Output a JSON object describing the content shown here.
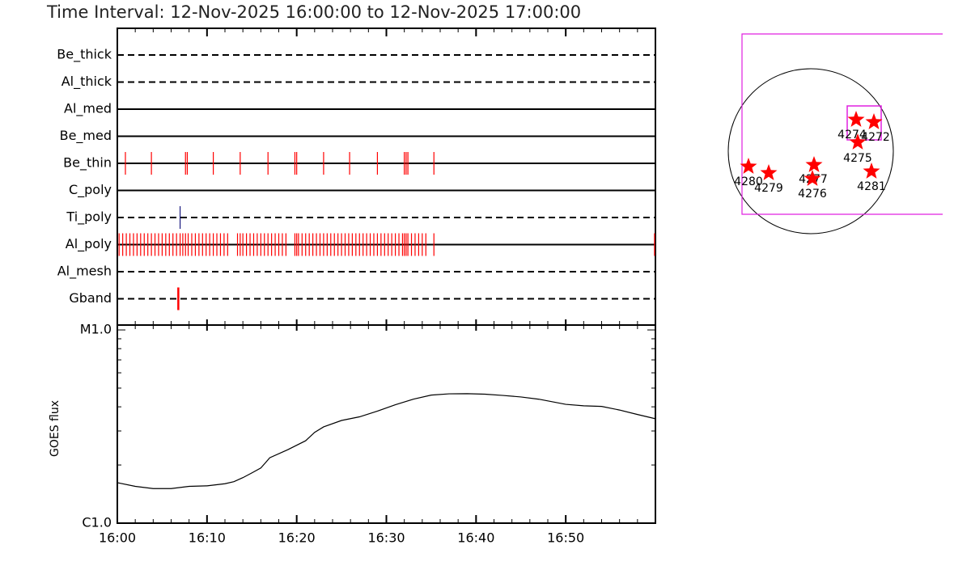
{
  "title": "Time Interval: 12-Nov-2025 16:00:00 to 12-Nov-2025 17:00:00",
  "chart_data": [
    {
      "type": "event",
      "xlim": [
        0,
        60
      ],
      "event_color": "#ff0000",
      "series": [
        {
          "name": "Be_thick",
          "style": "dashed",
          "values": []
        },
        {
          "name": "Al_thick",
          "style": "dashed",
          "values": []
        },
        {
          "name": "Al_med",
          "style": "solid",
          "values": []
        },
        {
          "name": "Be_med",
          "style": "solid",
          "values": []
        },
        {
          "name": "Be_thin",
          "style": "solid",
          "values": [
            0.9,
            3.8,
            7.6,
            7.8,
            10.7,
            13.7,
            16.8,
            19.8,
            20.0,
            23.0,
            25.9,
            29.0,
            32.0,
            32.2,
            32.4,
            35.3
          ]
        },
        {
          "name": "C_poly",
          "style": "solid",
          "values": []
        },
        {
          "name": "Ti_poly",
          "style": "dashed",
          "color": "#1a1a80",
          "values": [
            7.0
          ]
        },
        {
          "name": "Al_poly",
          "style": "solid",
          "values": [
            0.2,
            0.6,
            1.0,
            1.4,
            1.8,
            2.2,
            2.6,
            3.0,
            3.4,
            3.8,
            4.2,
            4.6,
            5.0,
            5.4,
            5.8,
            6.2,
            6.6,
            7.0,
            7.3,
            7.6,
            7.9,
            8.3,
            8.7,
            9.1,
            9.5,
            9.9,
            10.3,
            10.7,
            11.1,
            11.5,
            11.9,
            12.3,
            13.4,
            13.7,
            14.0,
            14.4,
            14.8,
            15.2,
            15.6,
            16.0,
            16.4,
            16.8,
            17.2,
            17.6,
            18.0,
            18.4,
            18.8,
            19.8,
            20.0,
            20.2,
            20.6,
            21.0,
            21.4,
            21.8,
            22.2,
            22.6,
            23.0,
            23.4,
            23.8,
            24.2,
            24.6,
            25.0,
            25.4,
            25.8,
            26.2,
            26.6,
            27.0,
            27.4,
            27.8,
            28.2,
            28.6,
            29.0,
            29.4,
            29.8,
            30.2,
            30.6,
            31.0,
            31.4,
            31.8,
            32.0,
            32.2,
            32.4,
            32.8,
            33.2,
            33.6,
            34.0,
            34.4,
            35.3,
            59.9
          ]
        },
        {
          "name": "Al_mesh",
          "style": "dashed",
          "values": []
        },
        {
          "name": "Gband",
          "style": "dashed",
          "width": 2.5,
          "values": [
            6.8
          ]
        }
      ]
    },
    {
      "type": "line",
      "ylabel": "GOES flux",
      "color": "#000000",
      "log_scale": true,
      "x": [
        0,
        2,
        4,
        6,
        8,
        10,
        12,
        13,
        14,
        15,
        16,
        16.5,
        17,
        19,
        21,
        22,
        23,
        25,
        27,
        29,
        31,
        33,
        35,
        37,
        39,
        41,
        43,
        45,
        47,
        50,
        52,
        54,
        56,
        58,
        60
      ],
      "values": [
        1.62e-06,
        1.55e-06,
        1.51e-06,
        1.51e-06,
        1.55e-06,
        1.56e-06,
        1.6e-06,
        1.64e-06,
        1.72e-06,
        1.82e-06,
        1.93e-06,
        2.05e-06,
        2.18e-06,
        2.4e-06,
        2.67e-06,
        2.95e-06,
        3.15e-06,
        3.4e-06,
        3.55e-06,
        3.8e-06,
        4.1e-06,
        4.38e-06,
        4.6e-06,
        4.67e-06,
        4.68e-06,
        4.65e-06,
        4.58e-06,
        4.5e-06,
        4.38e-06,
        4.12e-06,
        4.05e-06,
        4.02e-06,
        3.85e-06,
        3.65e-06,
        3.47e-06
      ],
      "xlim": [
        0,
        60
      ],
      "xticks": [
        {
          "value": 0,
          "label": "16:00"
        },
        {
          "value": 10,
          "label": "16:10"
        },
        {
          "value": 20,
          "label": "16:20"
        },
        {
          "value": 30,
          "label": "16:30"
        },
        {
          "value": 40,
          "label": "16:40"
        },
        {
          "value": 50,
          "label": "16:50"
        }
      ],
      "ylim": [
        1e-06,
        1.06e-05
      ],
      "yticks": [
        {
          "value": 1e-06,
          "label": "C1.0"
        },
        {
          "value": 1e-05,
          "label": "M1.0"
        }
      ]
    }
  ],
  "map": {
    "regions": [
      "4274",
      "4272",
      "4275",
      "4280",
      "4279",
      "4277",
      "4276",
      "4281"
    ]
  }
}
